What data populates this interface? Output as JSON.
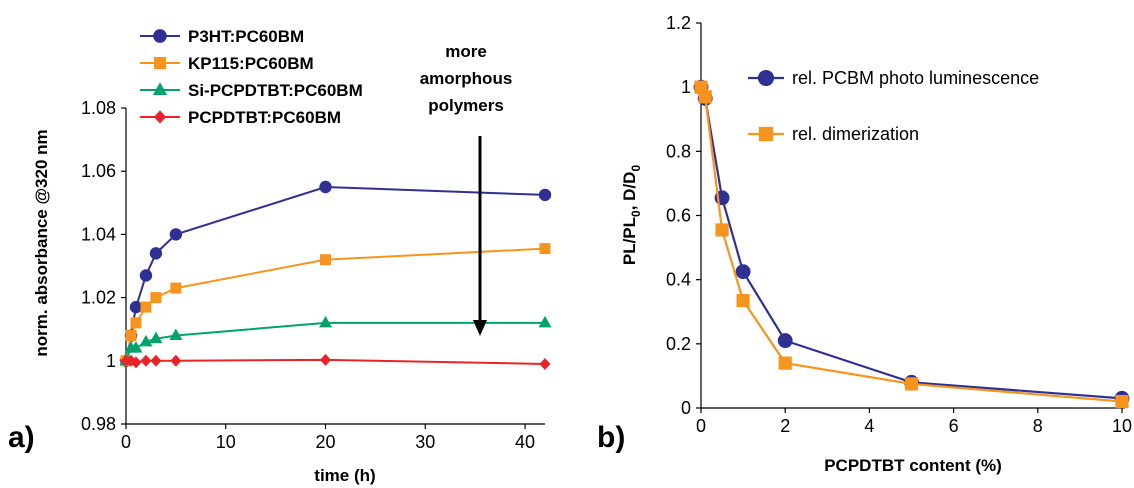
{
  "panels": {
    "a_label": "a)",
    "b_label": "b)"
  },
  "chart_data": [
    {
      "type": "line",
      "panel": "a",
      "xlabel": "time (h)",
      "ylabel": "norm. absorbance @320 nm",
      "xlim": [
        0,
        42
      ],
      "ylim": [
        0.98,
        1.08
      ],
      "xticks": [
        0,
        10,
        20,
        30,
        40
      ],
      "yticks": [
        0.98,
        1,
        1.02,
        1.04,
        1.06,
        1.08
      ],
      "ytick_labels": [
        "0.98",
        "1",
        "1.02",
        "1.04",
        "1.06",
        "1.08"
      ],
      "grid": false,
      "legend_position": "top-left",
      "annotation": {
        "lines": [
          "more",
          "amorphous",
          "polymers"
        ],
        "arrow": "down"
      },
      "series": [
        {
          "name": "P3HT:PC60BM",
          "color": "#2e3192",
          "marker": "circle",
          "x": [
            0,
            0.5,
            1,
            2,
            3,
            5,
            20,
            42
          ],
          "y": [
            1.0,
            1.008,
            1.017,
            1.027,
            1.034,
            1.04,
            1.055,
            1.0525
          ]
        },
        {
          "name": "KP115:PC60BM",
          "color": "#f7941d",
          "marker": "square",
          "x": [
            0,
            0.5,
            1,
            2,
            3,
            5,
            20,
            42
          ],
          "y": [
            1.0,
            1.008,
            1.012,
            1.017,
            1.02,
            1.023,
            1.032,
            1.0355
          ]
        },
        {
          "name": "Si-PCPDTBT:PC60BM",
          "color": "#00a36c",
          "marker": "triangle",
          "x": [
            0,
            0.5,
            1,
            2,
            3,
            5,
            20,
            42
          ],
          "y": [
            1.0,
            1.004,
            1.004,
            1.006,
            1.007,
            1.008,
            1.012,
            1.012
          ]
        },
        {
          "name": "PCPDTBT:PC60BM",
          "color": "#e8232a",
          "marker": "diamond",
          "x": [
            0,
            0.5,
            1,
            2,
            3,
            5,
            20,
            42
          ],
          "y": [
            1.0,
            1.0,
            0.9995,
            1.0,
            1.0,
            1.0,
            1.0003,
            0.999
          ]
        }
      ]
    },
    {
      "type": "line",
      "panel": "b",
      "xlabel": "PCPDTBT content (%)",
      "ylabel": "PL/PL0,  D/D0",
      "ylabel_parts": {
        "a": "PL/PL",
        "a_sub": "0",
        "sep": ",  D/D",
        "b_sub": "0"
      },
      "xlim": [
        0,
        10
      ],
      "ylim": [
        0,
        1.2
      ],
      "xticks": [
        0,
        2,
        4,
        6,
        8,
        10
      ],
      "yticks": [
        0,
        0.2,
        0.4,
        0.6,
        0.8,
        1,
        1.2
      ],
      "ytick_labels": [
        "0",
        "0.2",
        "0.4",
        "0.6",
        "0.8",
        "1",
        "1.2"
      ],
      "grid": false,
      "legend_position": "top-right",
      "series": [
        {
          "name": "rel. PCBM photo luminescence",
          "color": "#2e3192",
          "marker": "circle",
          "x": [
            0,
            0.1,
            0.5,
            1,
            2,
            5,
            10
          ],
          "y": [
            1.0,
            0.965,
            0.655,
            0.425,
            0.21,
            0.08,
            0.03
          ]
        },
        {
          "name": "rel. dimerization",
          "color": "#f7941d",
          "marker": "square",
          "x": [
            0,
            0.1,
            0.5,
            1,
            2,
            5,
            10
          ],
          "y": [
            1.0,
            0.97,
            0.555,
            0.335,
            0.14,
            0.075,
            0.02
          ]
        }
      ]
    }
  ]
}
